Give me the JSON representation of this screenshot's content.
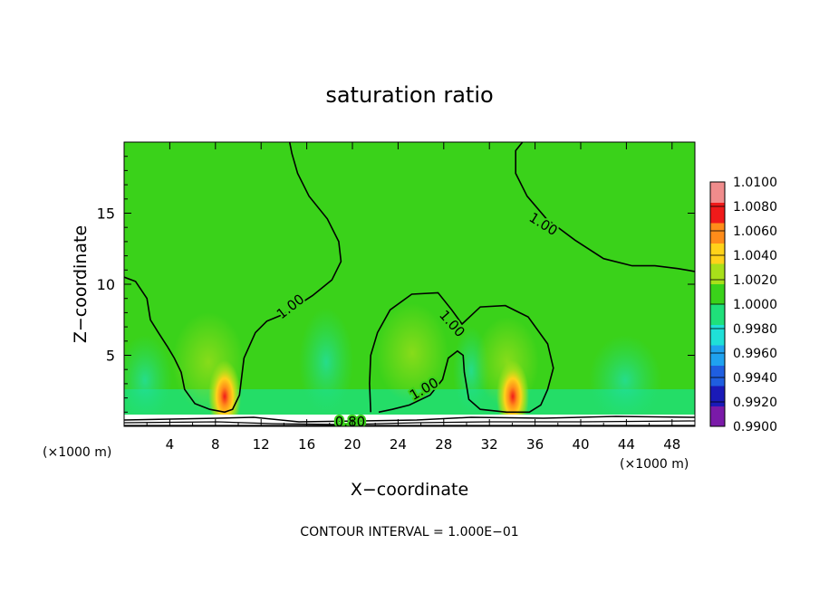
{
  "chart_data": {
    "type": "heatmap",
    "title": "saturation ratio",
    "xlabel": "X−coordinate",
    "ylabel": "Z−coordinate",
    "x_unit_left": "(×1000 m)",
    "x_unit_right": "(×1000 m)",
    "footer": "CONTOUR INTERVAL = 1.000E−01",
    "xlim": [
      0,
      50
    ],
    "ylim": [
      0,
      20
    ],
    "x_ticks": [
      4,
      8,
      12,
      16,
      20,
      24,
      28,
      32,
      36,
      40,
      44,
      48
    ],
    "y_ticks": [
      5,
      10,
      15
    ],
    "x_tick_labels": [
      "4",
      "8",
      "12",
      "16",
      "20",
      "24",
      "28",
      "32",
      "36",
      "40",
      "44",
      "48"
    ],
    "y_tick_labels": [
      "5",
      "10",
      "15"
    ],
    "colorbar": {
      "levels": [
        0.99,
        0.992,
        0.994,
        0.996,
        0.998,
        1.0,
        1.002,
        1.004,
        1.006,
        1.008,
        1.01
      ],
      "labels": [
        "0.9900",
        "0.9920",
        "0.9940",
        "0.9960",
        "0.9980",
        "1.0000",
        "1.0020",
        "1.0040",
        "1.0060",
        "1.0080",
        "1.0100"
      ],
      "colors": [
        "#7a1aa8",
        "#1a1ab8",
        "#1f5ee0",
        "#1fa2f0",
        "#1fe0d8",
        "#1fe07a",
        "#3ad21a",
        "#a8e01a",
        "#ffd21a",
        "#ff8c1a",
        "#f01a1a",
        "#f08c8c"
      ]
    },
    "contour_labels": [
      {
        "text": "1.00",
        "x": 14.6,
        "z": 8.4,
        "angle": -38
      },
      {
        "text": "1.00",
        "x": 36.7,
        "z": 14.2,
        "angle": 32
      },
      {
        "text": "1.00",
        "x": 28.7,
        "z": 7.2,
        "angle": 48
      },
      {
        "text": "1.00",
        "x": 26.3,
        "z": 2.6,
        "angle": -30
      },
      {
        "text": "0.80",
        "x": 19.8,
        "z": 0.3,
        "angle": 0
      }
    ],
    "contour_lines": [
      [
        [
          0,
          10.5
        ],
        [
          1,
          10.2
        ],
        [
          2,
          9.0
        ],
        [
          2.3,
          7.5
        ],
        [
          3,
          6.6
        ],
        [
          3.8,
          5.6
        ],
        [
          4.4,
          4.8
        ],
        [
          5,
          3.8
        ],
        [
          5.3,
          2.6
        ],
        [
          6.2,
          1.6
        ],
        [
          7.5,
          1.2
        ],
        [
          8.8,
          1.0
        ],
        [
          9.5,
          1.2
        ],
        [
          10.1,
          2.2
        ],
        [
          10.3,
          3.5
        ],
        [
          10.5,
          4.8
        ],
        [
          11.5,
          6.6
        ],
        [
          12.5,
          7.4
        ],
        [
          14,
          7.9
        ],
        [
          16.5,
          9.2
        ],
        [
          18.2,
          10.3
        ],
        [
          19,
          11.6
        ],
        [
          18.8,
          13.0
        ],
        [
          17.8,
          14.6
        ],
        [
          16.2,
          16.2
        ],
        [
          15.2,
          17.8
        ],
        [
          14.7,
          19.2
        ],
        [
          14.5,
          20
        ]
      ],
      [
        [
          34.9,
          20
        ],
        [
          34.3,
          19.4
        ],
        [
          34.3,
          17.8
        ],
        [
          35.3,
          16.2
        ],
        [
          37,
          14.6
        ],
        [
          39.5,
          13.1
        ],
        [
          42,
          11.8
        ],
        [
          44.5,
          11.3
        ],
        [
          46.5,
          11.3
        ],
        [
          48.5,
          11.1
        ],
        [
          50,
          10.9
        ]
      ],
      [
        [
          21.6,
          1.0
        ],
        [
          21.5,
          3.0
        ],
        [
          21.6,
          5.0
        ],
        [
          22.2,
          6.6
        ],
        [
          23.3,
          8.2
        ],
        [
          25.2,
          9.3
        ],
        [
          27.5,
          9.4
        ],
        [
          28.7,
          8.2
        ],
        [
          29.6,
          7.2
        ],
        [
          31.2,
          8.4
        ],
        [
          33.4,
          8.5
        ],
        [
          35.4,
          7.7
        ],
        [
          37.1,
          5.8
        ],
        [
          37.6,
          4.1
        ],
        [
          37.1,
          2.6
        ],
        [
          36.5,
          1.5
        ],
        [
          35.5,
          1.0
        ],
        [
          33.5,
          1.0
        ],
        [
          31.2,
          1.2
        ],
        [
          30.2,
          1.9
        ],
        [
          29.8,
          3.8
        ],
        [
          29.7,
          5.0
        ],
        [
          29.2,
          5.3
        ],
        [
          28.4,
          4.8
        ],
        [
          27.9,
          3.3
        ],
        [
          26.8,
          2.2
        ],
        [
          25.0,
          1.5
        ],
        [
          23.5,
          1.2
        ],
        [
          22.3,
          1.0
        ]
      ]
    ]
  }
}
